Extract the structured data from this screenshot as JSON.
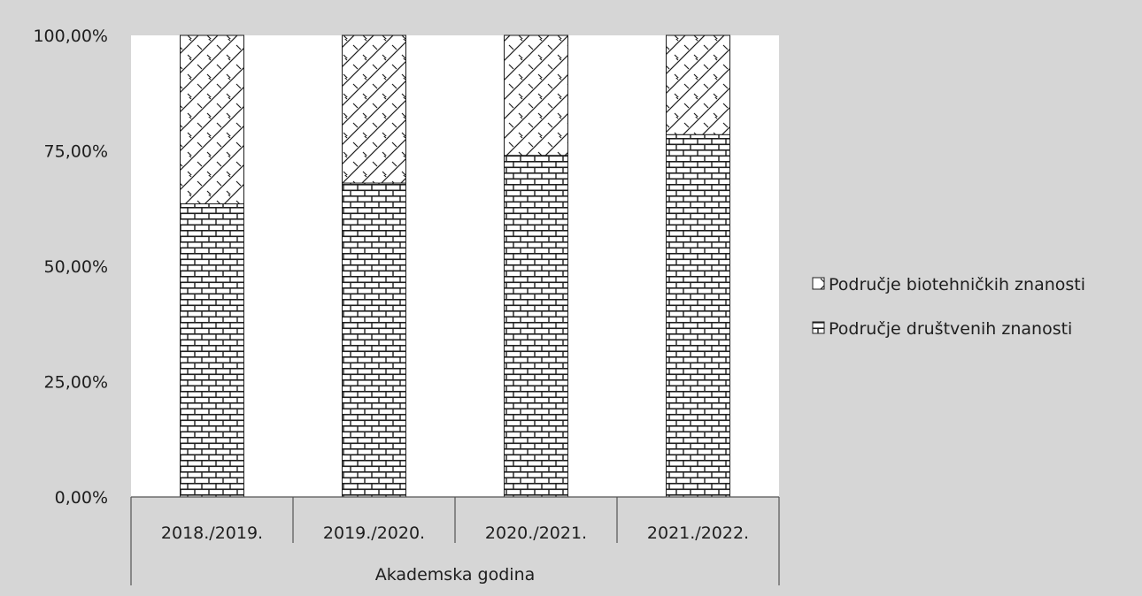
{
  "chart_data": {
    "type": "bar",
    "stacked": true,
    "categories": [
      "2018./2019.",
      "2019./2020.",
      "2020./2021.",
      "2021./2022."
    ],
    "series": [
      {
        "name": "Područje društvenih znanosti",
        "values": [
          63.5,
          68.0,
          74.0,
          78.5
        ],
        "pattern": "brick"
      },
      {
        "name": "Područje biotehničkih znanosti",
        "values": [
          36.5,
          32.0,
          26.0,
          21.5
        ],
        "pattern": "crosshatch"
      }
    ],
    "y_ticks": [
      "0,00%",
      "25,00%",
      "50,00%",
      "75,00%",
      "100,00%"
    ],
    "y_tick_values": [
      0,
      25,
      50,
      75,
      100
    ],
    "ylim": [
      0,
      100
    ],
    "xlabel": "Akademska godina",
    "ylabel": "",
    "grid": false,
    "legend": "right",
    "colors": {
      "background": "#d6d6d6",
      "plot_area": "#ffffff",
      "ink": "#1e1e1e"
    }
  }
}
